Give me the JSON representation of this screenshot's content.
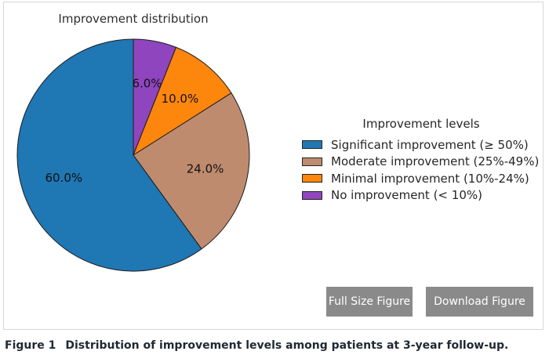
{
  "chart_data": {
    "type": "pie",
    "title": "Improvement distribution",
    "start_angle_deg_from_top_clockwise": 0,
    "slices": [
      {
        "label": "Significant improvement (≥ 50%)",
        "value": 60.0,
        "display": "60.0%",
        "color": "#1f77b4"
      },
      {
        "label": "Moderate improvement (25%-49%)",
        "value": 24.0,
        "display": "24.0%",
        "color": "#bf8b6e"
      },
      {
        "label": "Minimal improvement (10%-24%)",
        "value": 10.0,
        "display": "10.0%",
        "color": "#fd860d"
      },
      {
        "label": "No improvement (< 10%)",
        "value": 6.0,
        "display": "6.0%",
        "color": "#8e45bd"
      }
    ],
    "edge_color": "#1c1c1c",
    "pct_label_color": "#111111",
    "legend_position": "right"
  },
  "legend": {
    "title": "Improvement levels",
    "items": [
      {
        "label": "Significant improvement (≥ 50%)",
        "color": "#1f77b4"
      },
      {
        "label": "Moderate improvement (25%-49%)",
        "color": "#bf8b6e"
      },
      {
        "label": "Minimal improvement (10%-24%)",
        "color": "#fd860d"
      },
      {
        "label": "No improvement (< 10%)",
        "color": "#8e45bd"
      }
    ]
  },
  "buttons": {
    "full_size_label": "Full Size Figure",
    "download_label": "Download Figure"
  },
  "caption": {
    "figure_label": "Figure 1",
    "text": "Distribution of improvement levels among patients at 3-year follow-up."
  },
  "colors": {
    "figure_border": "#d7d7d7",
    "button_background": "#8a8a8a",
    "button_text": "#ffffff",
    "caption_text": "#1f2833"
  }
}
